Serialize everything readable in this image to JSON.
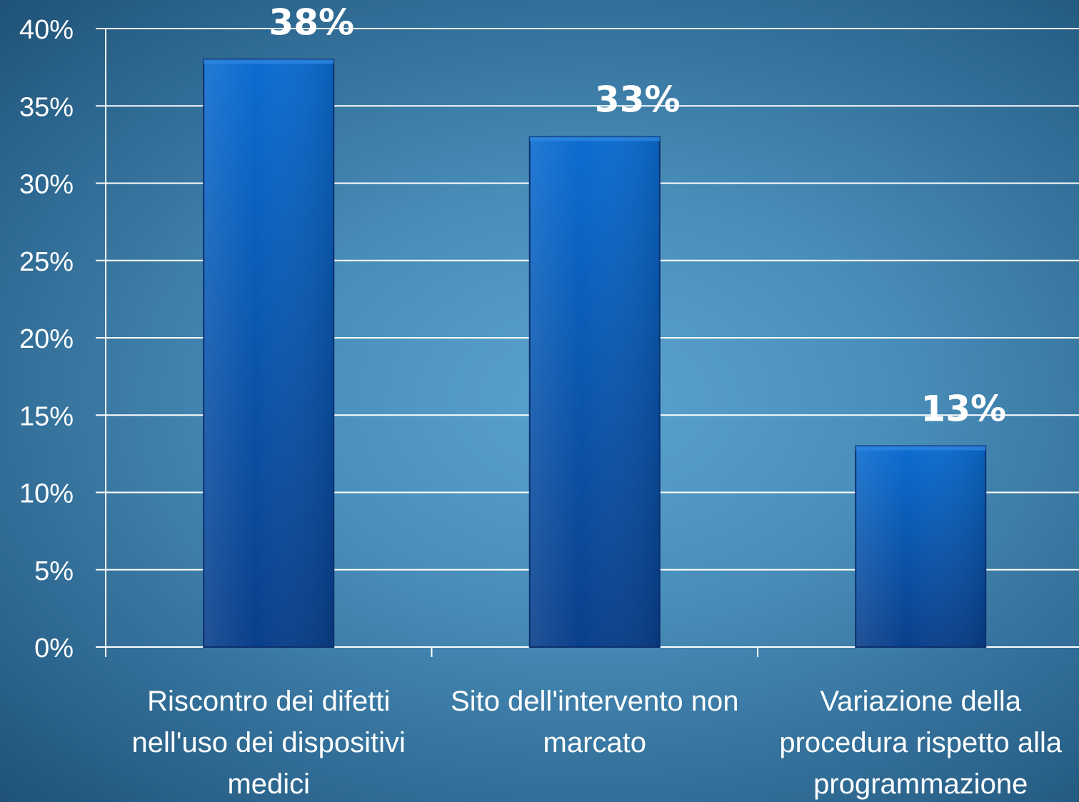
{
  "chart_data": {
    "type": "bar",
    "categories": [
      [
        "Riscontro dei difetti",
        "nell'uso dei dispositivi",
        "medici"
      ],
      [
        "Sito dell'intervento non",
        "marcato"
      ],
      [
        "Variazione della",
        "procedura rispetto alla",
        "programmazione"
      ]
    ],
    "values": [
      38,
      33,
      13
    ],
    "value_labels": [
      "38%",
      "33%",
      "13%"
    ],
    "ylim": [
      0,
      40
    ],
    "yticks": [
      0,
      5,
      10,
      15,
      20,
      25,
      30,
      35,
      40
    ],
    "ytick_labels": [
      "0%",
      "5%",
      "10%",
      "15%",
      "20%",
      "25%",
      "30%",
      "35%",
      "40%"
    ],
    "grid": true,
    "colors": {
      "bar_top": "#0a66c8",
      "bar_bottom": "#0a3f8a",
      "bar_edge": "#0a2f6e",
      "grid": "#ffffff",
      "text": "#ffffff"
    }
  }
}
